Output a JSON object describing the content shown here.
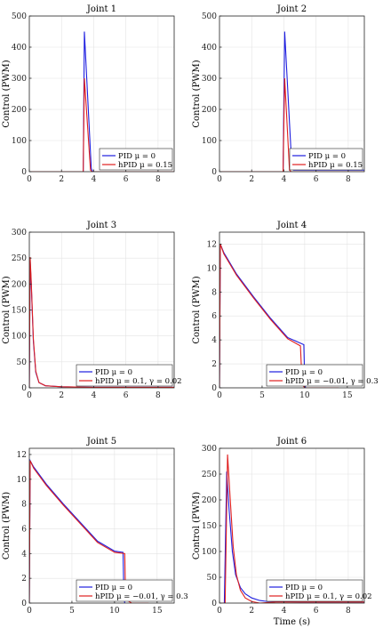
{
  "figure": {
    "xlabel_bottom_right": "Time (s)"
  },
  "colors": {
    "pid": "#1f1fe0",
    "hpid": "#e01f1f"
  },
  "chart_data": [
    {
      "type": "line",
      "title": "Joint 1",
      "ylabel": "Control (PWM)",
      "xlabel": "",
      "xlim": [
        0,
        9
      ],
      "ylim": [
        0,
        500
      ],
      "xticks": [
        0,
        2,
        4,
        6,
        8
      ],
      "yticks": [
        0,
        100,
        200,
        300,
        400,
        500
      ],
      "grid": true,
      "legend_position": "bottom-right",
      "series": [
        {
          "name": "PID μ = 0",
          "color_key": "pid",
          "x": [
            0,
            3.35,
            3.42,
            3.85,
            3.95,
            4.5,
            9
          ],
          "y": [
            0,
            0,
            450,
            10,
            0,
            0,
            0
          ]
        },
        {
          "name": "hPID μ = 0.15",
          "color_key": "hpid",
          "x": [
            0,
            3.35,
            3.42,
            3.8,
            3.9,
            4.5,
            9
          ],
          "y": [
            0,
            0,
            300,
            5,
            0,
            0,
            0
          ]
        }
      ]
    },
    {
      "type": "line",
      "title": "Joint 2",
      "ylabel": "Control (PWM)",
      "xlabel": "",
      "xlim": [
        0,
        9
      ],
      "ylim": [
        0,
        500
      ],
      "xticks": [
        0,
        2,
        4,
        6,
        8
      ],
      "yticks": [
        0,
        100,
        200,
        300,
        400,
        500
      ],
      "grid": true,
      "legend_position": "bottom-right",
      "series": [
        {
          "name": "PID μ = 0",
          "color_key": "pid",
          "x": [
            0,
            3.95,
            4.05,
            4.5,
            4.6,
            9
          ],
          "y": [
            0,
            0,
            450,
            10,
            5,
            5
          ]
        },
        {
          "name": "hPID μ = 0.15",
          "color_key": "hpid",
          "x": [
            0,
            3.95,
            4.05,
            4.35,
            4.45,
            9
          ],
          "y": [
            0,
            0,
            300,
            5,
            0,
            0
          ]
        }
      ]
    },
    {
      "type": "line",
      "title": "Joint 3",
      "ylabel": "Control (PWM)",
      "xlabel": "",
      "xlim": [
        0,
        9
      ],
      "ylim": [
        0,
        300
      ],
      "xticks": [
        0,
        2,
        4,
        6,
        8
      ],
      "yticks": [
        0,
        50,
        100,
        150,
        200,
        250,
        300
      ],
      "grid": true,
      "legend_position": "bottom-right",
      "series": [
        {
          "name": "PID μ = 0",
          "color_key": "pid",
          "x": [
            0,
            0.05,
            0.12,
            0.25,
            0.4,
            0.6,
            1.0,
            2,
            4,
            9
          ],
          "y": [
            0,
            245,
            200,
            90,
            30,
            10,
            4,
            2,
            1,
            1
          ]
        },
        {
          "name": "hPID μ = 0.1, γ = 0.02",
          "color_key": "hpid",
          "x": [
            0,
            0.05,
            0.12,
            0.25,
            0.4,
            0.6,
            1.0,
            2,
            4,
            9
          ],
          "y": [
            0,
            252,
            205,
            95,
            32,
            10,
            4,
            2,
            1,
            1
          ]
        }
      ]
    },
    {
      "type": "line",
      "title": "Joint 4",
      "ylabel": "Control (PWM)",
      "xlabel": "",
      "xlim": [
        0,
        17
      ],
      "ylim": [
        0,
        13
      ],
      "xticks": [
        0,
        5,
        10,
        15
      ],
      "yticks": [
        0,
        2,
        4,
        6,
        8,
        10,
        12
      ],
      "grid": true,
      "legend_position": "bottom-right",
      "series": [
        {
          "name": "PID μ = 0",
          "color_key": "pid",
          "x": [
            0,
            0.1,
            0.5,
            2,
            4,
            6,
            8,
            9.9,
            10.0,
            10.1
          ],
          "y": [
            0,
            12,
            11.3,
            9.5,
            7.6,
            5.8,
            4.2,
            3.6,
            0.5,
            0
          ]
        },
        {
          "name": "hPID μ = −0.01, γ = 0.3",
          "color_key": "hpid",
          "x": [
            0,
            0.1,
            0.5,
            2,
            4,
            6,
            8,
            9.5,
            9.7,
            10,
            12,
            14
          ],
          "y": [
            0,
            12,
            11.2,
            9.4,
            7.5,
            5.7,
            4.1,
            3.5,
            0.3,
            0,
            0,
            0
          ]
        }
      ]
    },
    {
      "type": "line",
      "title": "Joint 5",
      "ylabel": "Control (PWM)",
      "xlabel": "",
      "xlim": [
        0,
        17
      ],
      "ylim": [
        0,
        12.5
      ],
      "xticks": [
        0,
        5,
        10,
        15
      ],
      "yticks": [
        0,
        2,
        4,
        6,
        8,
        10,
        12
      ],
      "grid": true,
      "legend_position": "bottom-right",
      "series": [
        {
          "name": "PID μ = 0",
          "color_key": "pid",
          "x": [
            0,
            0.1,
            0.5,
            2,
            4,
            6,
            8,
            10,
            11,
            11.1,
            11.2
          ],
          "y": [
            0,
            11.5,
            11,
            9.6,
            8,
            6.5,
            5,
            4.2,
            4.1,
            0.5,
            0
          ]
        },
        {
          "name": "hPID μ = −0.01, γ = 0.3",
          "color_key": "hpid",
          "x": [
            0,
            0.1,
            0.5,
            2,
            4,
            6,
            8,
            10,
            11.2,
            11.3,
            12,
            14
          ],
          "y": [
            0,
            11.5,
            10.9,
            9.5,
            7.9,
            6.4,
            4.9,
            4.1,
            4.0,
            0.3,
            0,
            0
          ]
        }
      ]
    },
    {
      "type": "line",
      "title": "Joint 6",
      "ylabel": "Control (PWM)",
      "xlabel": "Time (s)",
      "xlim": [
        0,
        9
      ],
      "ylim": [
        0,
        300
      ],
      "xticks": [
        0,
        2,
        4,
        6,
        8
      ],
      "yticks": [
        0,
        50,
        100,
        150,
        200,
        250,
        300
      ],
      "grid": true,
      "legend_position": "bottom-right",
      "series": [
        {
          "name": "PID μ = 0",
          "color_key": "pid",
          "x": [
            0,
            0.3,
            0.45,
            0.6,
            0.8,
            1.0,
            1.3,
            1.6,
            2.0,
            2.5,
            3.0,
            4.0,
            5.0,
            9.0
          ],
          "y": [
            0,
            0,
            255,
            180,
            100,
            55,
            30,
            18,
            10,
            5,
            3,
            3,
            2,
            2
          ]
        },
        {
          "name": "hPID μ = 0.1, γ = 0.02",
          "color_key": "hpid",
          "x": [
            0,
            0.35,
            0.5,
            0.65,
            0.85,
            1.05,
            1.3,
            1.6,
            2.0,
            2.5,
            3.0,
            3.5,
            4.0,
            5.0,
            9.0
          ],
          "y": [
            0,
            0,
            288,
            210,
            110,
            55,
            25,
            10,
            3,
            0,
            1,
            2,
            2,
            2,
            2
          ]
        }
      ]
    }
  ]
}
